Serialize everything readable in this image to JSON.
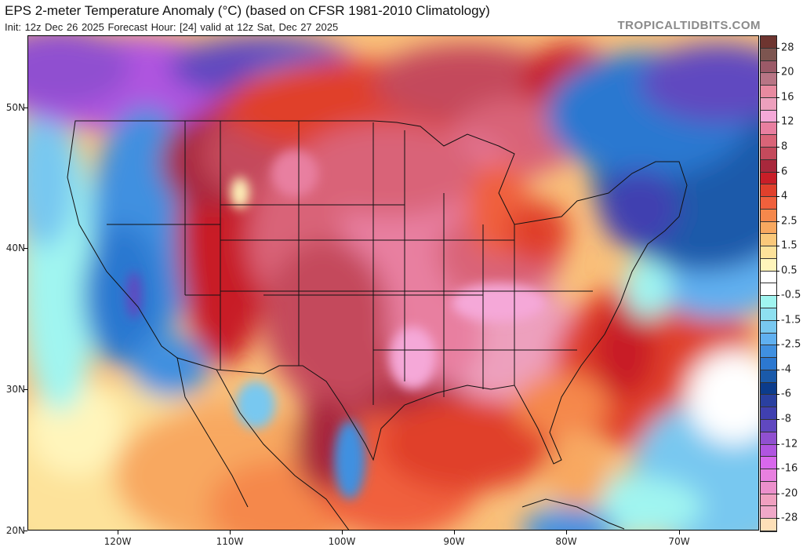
{
  "header": {
    "title": "EPS 2-meter Temperature Anomaly (°C) (based on CFSR 1981-2010 Climatology)",
    "subtitle": "Init: 12z Dec 26 2025   Forecast Hour: [24]   valid at 12z Sat, Dec 27 2025",
    "watermark": "TROPICALTIDBITS.COM"
  },
  "map": {
    "latitude_labels": [
      "50N",
      "40N",
      "30N",
      "20N"
    ],
    "longitude_labels": [
      "120W",
      "110W",
      "100W",
      "90W",
      "80W",
      "70W"
    ]
  },
  "colorbar": {
    "labels": [
      "28",
      "20",
      "16",
      "12",
      "8",
      "6",
      "4",
      "2.5",
      "1.5",
      "0.5",
      "-0.5",
      "-1.5",
      "-2.5",
      "-4",
      "-6",
      "-8",
      "-12",
      "-16",
      "-20",
      "-28"
    ],
    "colors": [
      "#6e3530",
      "#7d5550",
      "#9b5a68",
      "#b87585",
      "#e88aa0",
      "#eda0bd",
      "#f5a8d8",
      "#e87fa0",
      "#d96478",
      "#c44a5c",
      "#a8283c",
      "#c81e28",
      "#e0402c",
      "#f0603c",
      "#f5884c",
      "#f8a860",
      "#fac87a",
      "#fde29a",
      "#fff5bb",
      "#ffffff",
      "#ffffff",
      "#a0f5f0",
      "#8ee0f0",
      "#78c8f0",
      "#60b0f0",
      "#4090e0",
      "#2c78d0",
      "#1a5aaa",
      "#0c3c8c",
      "#2a40a0",
      "#4040b0",
      "#6048c0",
      "#9050d0",
      "#b055e0",
      "#d868ec",
      "#e880e0",
      "#ec90cc",
      "#f0a0c0",
      "#f0a8c8",
      "#fde0b8"
    ]
  }
}
